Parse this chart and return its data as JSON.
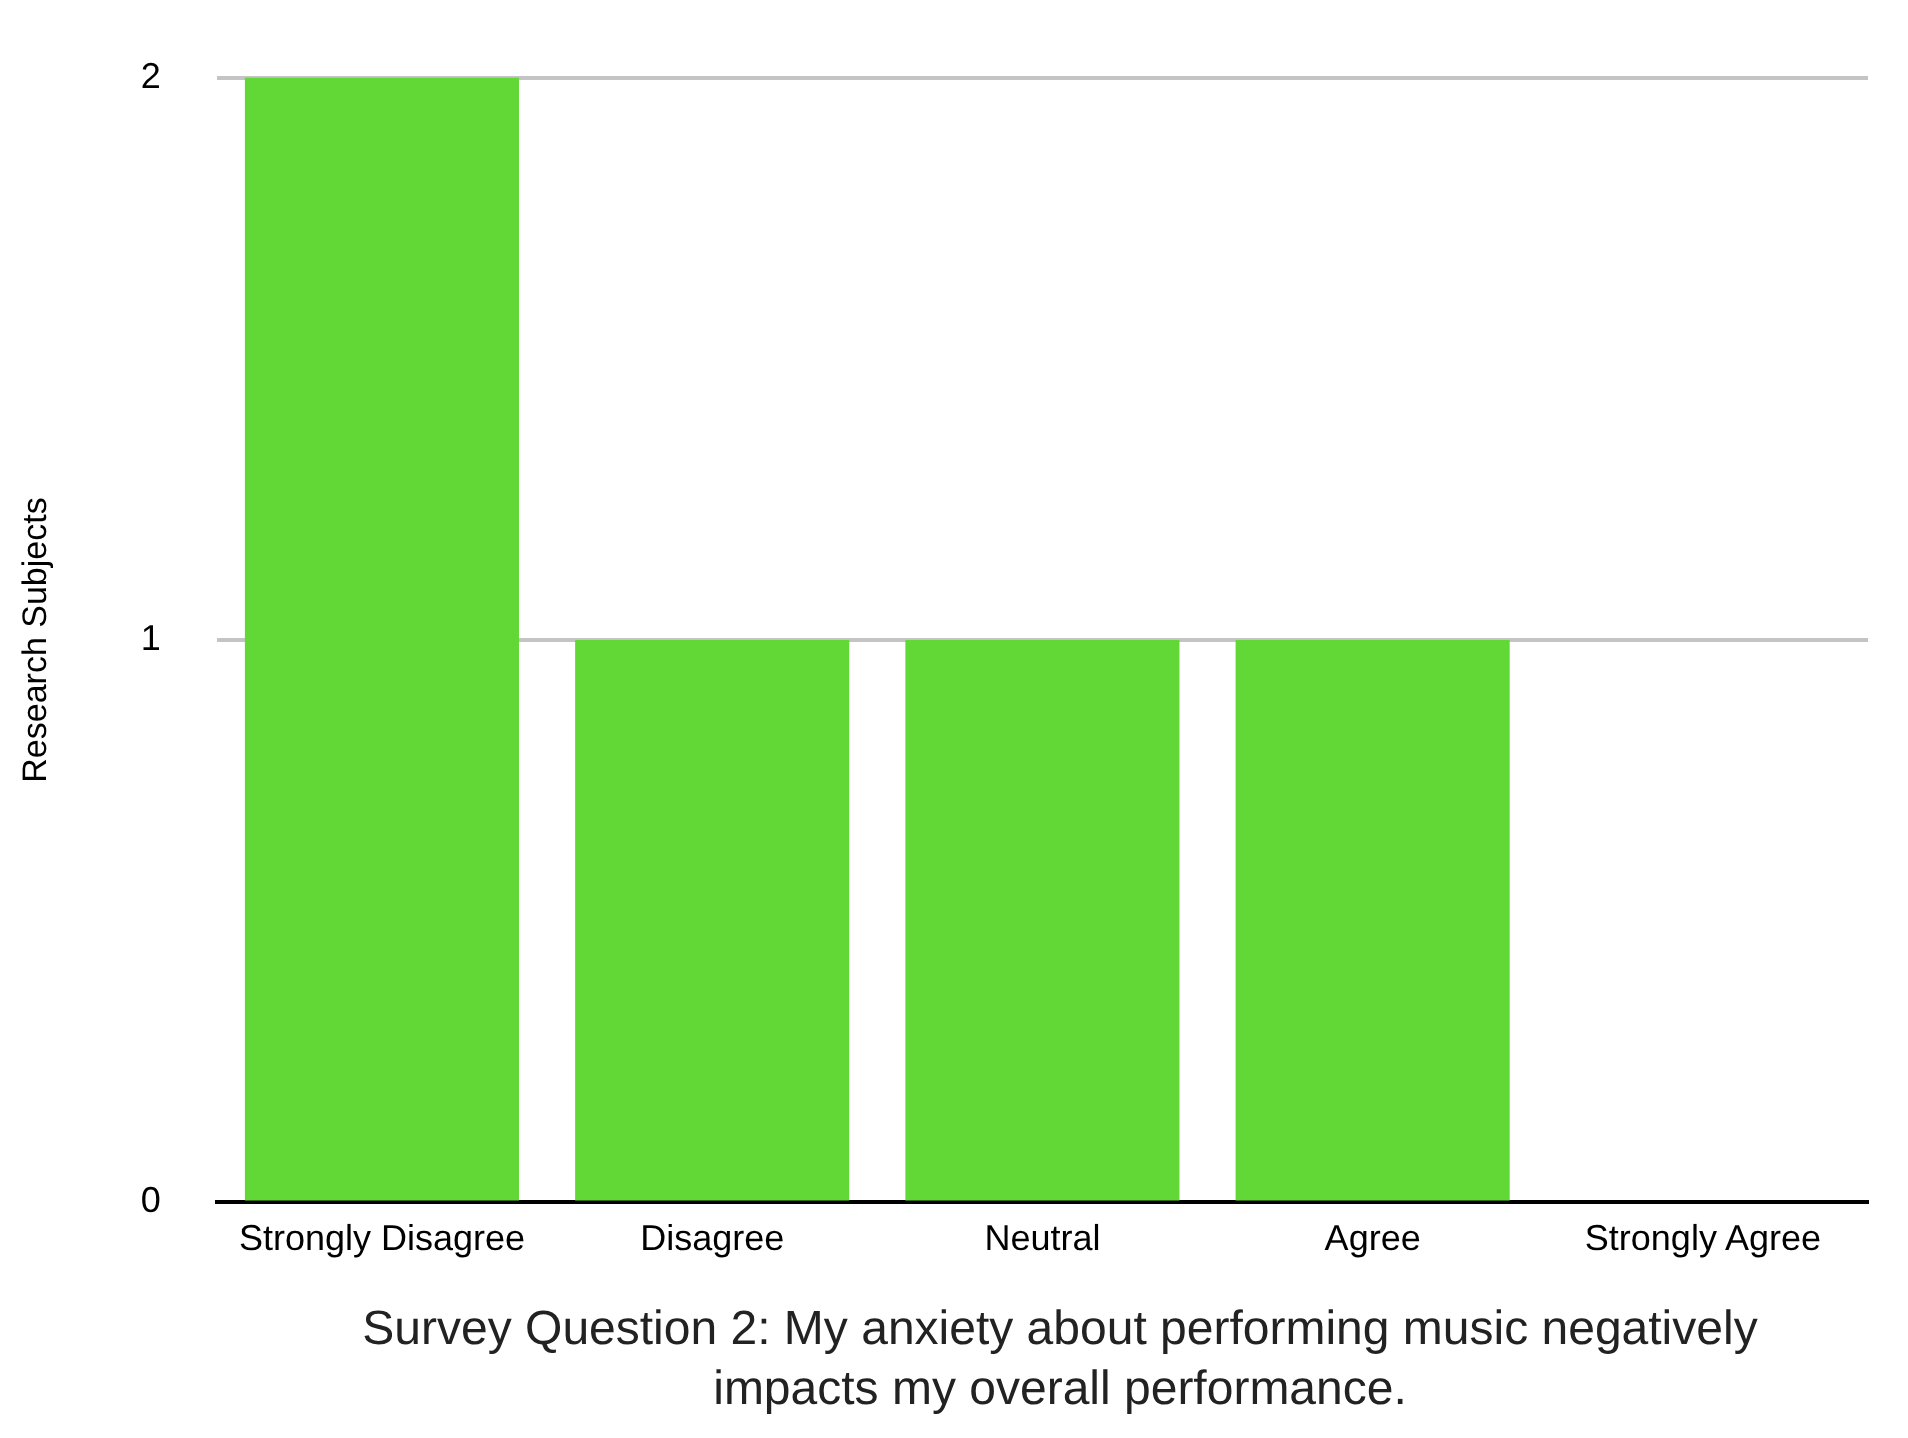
{
  "chart_data": {
    "type": "bar",
    "categories": [
      "Strongly Disagree",
      "Disagree",
      "Neutral",
      "Agree",
      "Strongly Agree"
    ],
    "values": [
      2,
      1,
      1,
      1,
      0
    ],
    "color": "#61d836",
    "ylabel": "Research Subjects",
    "xlabel": "Survey Question 2: My anxiety about performing music negatively impacts my overall performance.",
    "ylim": [
      0,
      2
    ],
    "yticks": [
      0,
      1,
      2
    ],
    "grid": "y",
    "legend": false
  }
}
